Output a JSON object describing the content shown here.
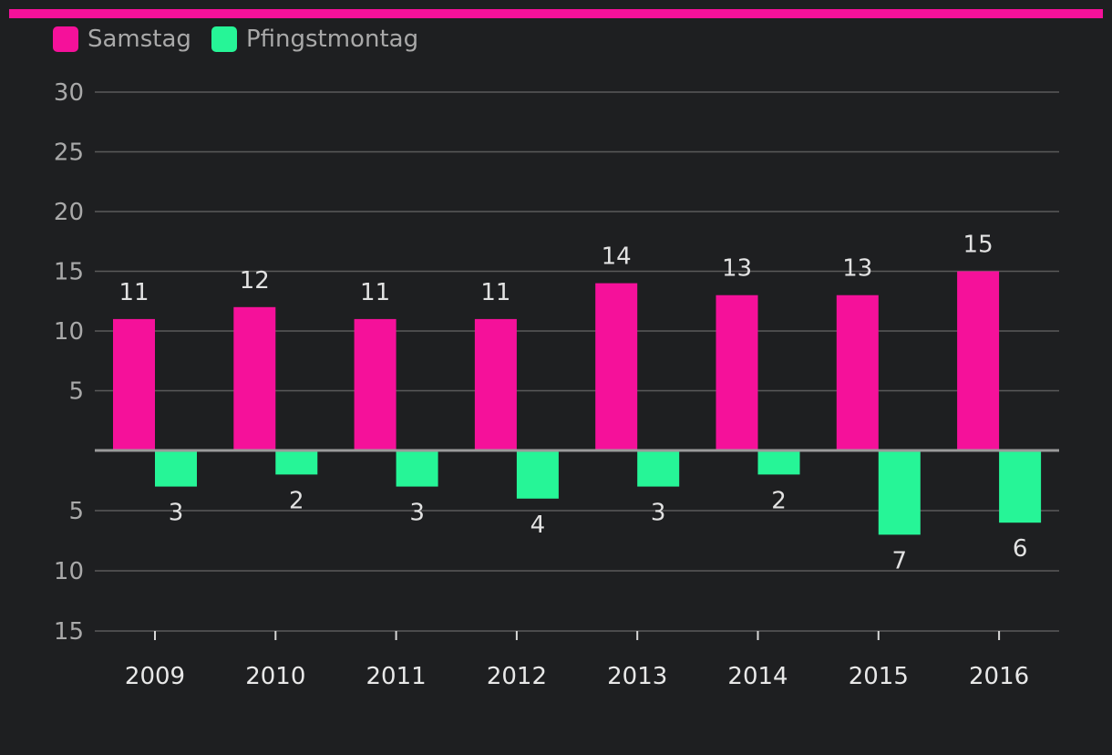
{
  "colors": {
    "background": "#1e1f21",
    "accent": "#f5119a",
    "series_pos": "#f5119a",
    "series_neg": "#26f597",
    "grid": "#5a5a5a",
    "baseline": "#9a9a9a"
  },
  "chart_data": {
    "type": "bar",
    "title": "",
    "xlabel": "",
    "ylabel": "",
    "categories": [
      "2009",
      "2010",
      "2011",
      "2012",
      "2013",
      "2014",
      "2015",
      "2016"
    ],
    "series": [
      {
        "name": "Samstag",
        "direction": "up",
        "values": [
          11,
          12,
          11,
          11,
          14,
          13,
          13,
          15
        ]
      },
      {
        "name": "Pfingstmontag",
        "direction": "down",
        "values": [
          3,
          2,
          3,
          4,
          3,
          2,
          7,
          6
        ]
      }
    ],
    "ylim_up": [
      0,
      30
    ],
    "ylim_down": [
      0,
      15
    ],
    "yticks_up": [
      "5",
      "10",
      "15",
      "20",
      "25",
      "30"
    ],
    "yticks_down": [
      "5",
      "10",
      "15"
    ],
    "grid": true,
    "legend_position": "top-left"
  }
}
